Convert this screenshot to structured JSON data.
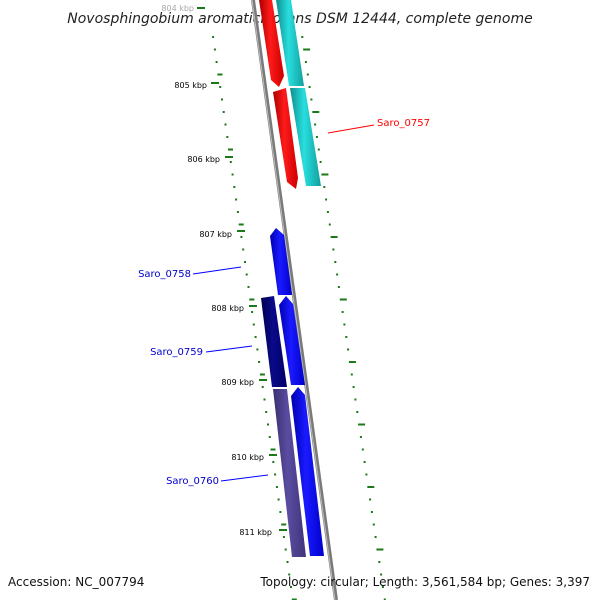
{
  "title": "Novosphingobium aromaticivorans DSM 12444, complete genome",
  "footer": {
    "accession": "Accession: NC_007794",
    "stats": "Topology: circular; Length: 3,561,584 bp; Genes: 3,397"
  },
  "ruler": {
    "ticks": [
      {
        "label": "804 kbp"
      },
      {
        "label": "805 kbp"
      },
      {
        "label": "806 kbp"
      },
      {
        "label": "807 kbp"
      },
      {
        "label": "808 kbp"
      },
      {
        "label": "809 kbp"
      },
      {
        "label": "810 kbp"
      },
      {
        "label": "811 kbp"
      }
    ]
  },
  "genes": [
    {
      "name": "Saro_0757",
      "color": "#ff0000",
      "strand": "forward"
    },
    {
      "name": "Saro_0758",
      "color": "#0000ff",
      "strand": "reverse"
    },
    {
      "name": "Saro_0759",
      "color": "#000080",
      "strand": "reverse"
    },
    {
      "name": "Saro_0760",
      "color": "#4b3d8f",
      "strand": "reverse"
    }
  ],
  "colors": {
    "backbone": "#888888",
    "gc_skew": "#1a7a1a",
    "cds_red": "#ff0000",
    "cds_cyan": "#1cc7c7",
    "cds_blue": "#0000ff",
    "cds_navy": "#000080",
    "cds_slate": "#4b3d8f"
  }
}
